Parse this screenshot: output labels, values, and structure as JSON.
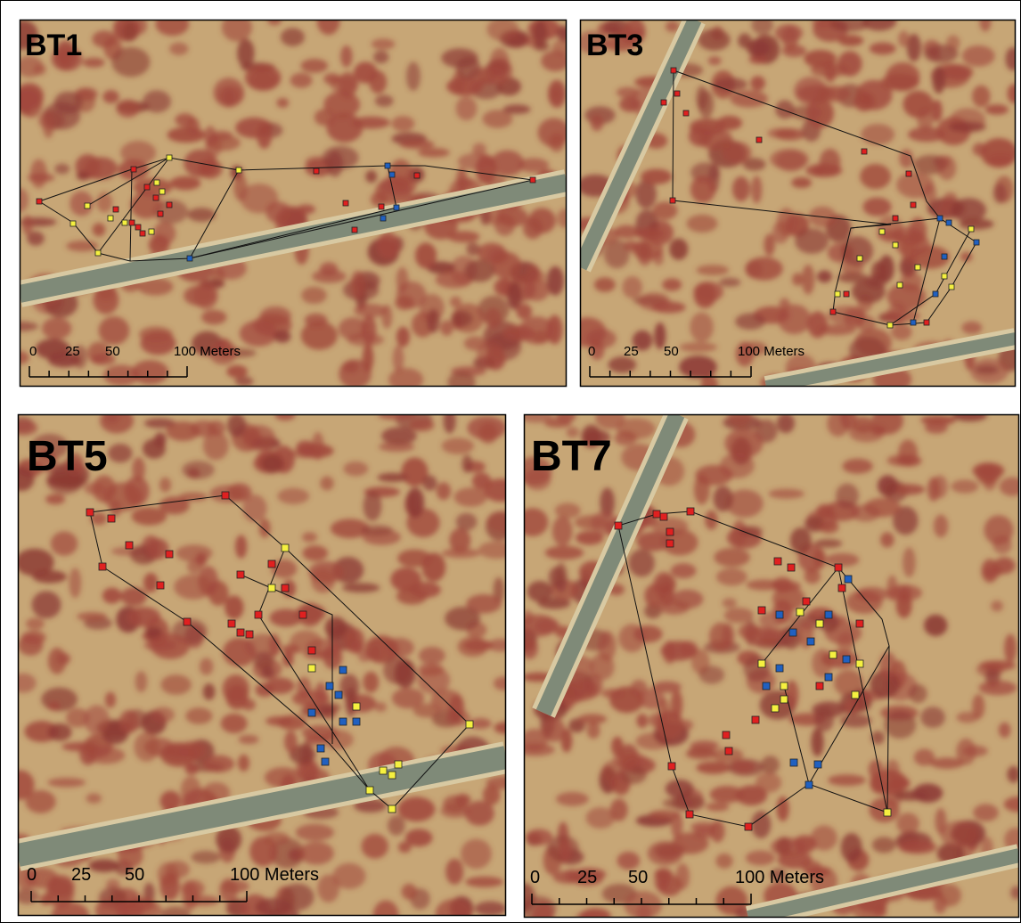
{
  "panels": [
    {
      "label": "BT1",
      "scale_labels": [
        "0",
        "25",
        "50",
        "100 Meters"
      ]
    },
    {
      "label": "BT3",
      "scale_labels": [
        "0",
        "25",
        "50",
        "100 Meters"
      ]
    },
    {
      "label": "BT5",
      "scale_labels": [
        "0",
        "25",
        "50",
        "100 Meters"
      ]
    },
    {
      "label": "BT7",
      "scale_labels": [
        "0",
        "25",
        "50",
        "100 Meters"
      ]
    }
  ]
}
